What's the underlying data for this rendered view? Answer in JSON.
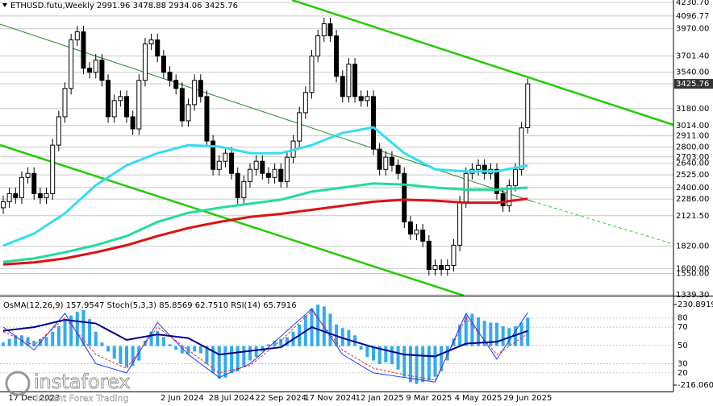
{
  "chart_data": [
    {
      "type": "candlestick",
      "title": "ETHUSD.futu,Weekly  2991.96 3478.88 2934.06 3425.76",
      "categories": [
        null,
        null,
        null,
        null,
        null,
        "17 Dec 2023",
        null,
        null,
        null,
        null,
        null,
        null,
        null,
        null,
        null,
        null,
        null,
        null,
        null,
        null,
        null,
        null,
        null,
        null,
        null,
        null,
        null,
        null,
        null,
        "2 Jun 2024",
        null,
        null,
        null,
        null,
        null,
        null,
        null,
        "28 Jul 2024",
        null,
        null,
        null,
        null,
        null,
        null,
        null,
        "22 Sep 2024",
        null,
        null,
        null,
        null,
        null,
        null,
        null,
        "17 Nov 2024",
        null,
        null,
        null,
        null,
        null,
        null,
        null,
        "12 Jan 2025",
        null,
        null,
        null,
        null,
        null,
        null,
        null,
        "9 Mar 2025",
        null,
        null,
        null,
        null,
        null,
        null,
        null,
        "4 May 2025",
        null,
        null,
        null,
        null,
        null,
        null,
        null,
        "29 Jun 2025"
      ],
      "open": [
        2200,
        2260,
        2340,
        2300,
        2500,
        2540,
        2340,
        2300,
        2340,
        2820,
        3100,
        3380,
        3860,
        3940,
        3580,
        3540,
        3660,
        3460,
        3100,
        3260,
        3300,
        3100,
        2980,
        3460,
        3820,
        3860,
        3700,
        3540,
        3460,
        3380,
        3060,
        3220,
        3460,
        3300,
        2860,
        2580,
        2660,
        2740,
        2540,
        2300,
        2460,
        2580,
        2660,
        2540,
        2500,
        2580,
        2460,
        2700,
        2860,
        3140,
        3340,
        3700,
        3900,
        4020,
        3900,
        3500,
        3300,
        3620,
        3300,
        3260,
        3300,
        2780,
        2580,
        2700,
        2620,
        2540,
        2060,
        1940,
        1980,
        1870,
        1590,
        1630,
        1590,
        1630,
        1830,
        2260,
        2540,
        2580,
        2620,
        2540,
        2580,
        2340,
        2220,
        2420,
        2580,
        2991.96
      ],
      "high": [
        2320,
        2400,
        2400,
        2560,
        2600,
        2600,
        2400,
        2400,
        2880,
        3160,
        3440,
        3920,
        4000,
        4000,
        3640,
        3720,
        3720,
        3520,
        3320,
        3360,
        3360,
        3160,
        3520,
        3880,
        3920,
        3920,
        3760,
        3600,
        3520,
        3440,
        3280,
        3520,
        3520,
        3360,
        2920,
        2720,
        2800,
        2800,
        2600,
        2520,
        2640,
        2720,
        2720,
        2600,
        2640,
        2640,
        2760,
        2920,
        3200,
        3400,
        3760,
        3960,
        4080,
        4080,
        3960,
        3560,
        3680,
        3680,
        3360,
        3360,
        3360,
        2840,
        2760,
        2760,
        2680,
        2600,
        2120,
        2040,
        2040,
        1930,
        1690,
        1690,
        1690,
        1890,
        2320,
        2600,
        2640,
        2680,
        2680,
        2640,
        2640,
        2400,
        2480,
        2640,
        3050,
        3478.88
      ],
      "low": [
        2140,
        2200,
        2240,
        2240,
        2440,
        2280,
        2240,
        2240,
        2280,
        2760,
        3040,
        3320,
        3800,
        3520,
        3480,
        3480,
        3400,
        3040,
        3040,
        3200,
        3040,
        2920,
        2920,
        3400,
        3760,
        3640,
        3480,
        3400,
        3320,
        3000,
        3000,
        3160,
        3240,
        2800,
        2520,
        2520,
        2600,
        2480,
        2240,
        2240,
        2400,
        2520,
        2480,
        2440,
        2440,
        2400,
        2400,
        2640,
        2800,
        3080,
        3280,
        3640,
        3840,
        3840,
        3440,
        3240,
        3240,
        3240,
        3200,
        3200,
        2720,
        2520,
        2520,
        2560,
        2480,
        2000,
        1880,
        1880,
        1810,
        1530,
        1530,
        1530,
        1530,
        1570,
        1770,
        2200,
        2480,
        2520,
        2480,
        2480,
        2280,
        2160,
        2160,
        2360,
        2520,
        2934.06
      ],
      "close": [
        2260,
        2340,
        2300,
        2500,
        2540,
        2340,
        2300,
        2340,
        2820,
        3100,
        3380,
        3860,
        3940,
        3580,
        3540,
        3660,
        3460,
        3100,
        3260,
        3300,
        3100,
        2980,
        3460,
        3820,
        3860,
        3700,
        3540,
        3460,
        3380,
        3060,
        3220,
        3460,
        3300,
        2860,
        2580,
        2660,
        2740,
        2540,
        2300,
        2460,
        2580,
        2660,
        2540,
        2500,
        2580,
        2460,
        2700,
        2860,
        3140,
        3340,
        3700,
        3900,
        4020,
        3900,
        3500,
        3300,
        3620,
        3300,
        3260,
        3300,
        2780,
        2580,
        2700,
        2620,
        2540,
        2060,
        1940,
        1980,
        1870,
        1590,
        1630,
        1590,
        1630,
        1830,
        2260,
        2540,
        2580,
        2620,
        2540,
        2580,
        2340,
        2220,
        2420,
        2580,
        2990,
        3425.76
      ],
      "up_color": "#ffffff",
      "down_color": "#000000",
      "overlays": [
        {
          "color": "#33ddf0",
          "x": [
            0,
            5,
            10,
            15,
            20,
            25,
            30,
            35,
            40,
            45,
            50,
            55,
            60,
            65,
            70,
            75,
            80,
            85
          ],
          "values": [
            1825,
            1945,
            2145,
            2423,
            2620,
            2740,
            2820,
            2805,
            2740,
            2740,
            2820,
            2940,
            2996,
            2740,
            2580,
            2560,
            2560,
            2620
          ]
        },
        {
          "color": "#22dd99",
          "x": [
            0,
            5,
            10,
            15,
            20,
            25,
            30,
            35,
            40,
            45,
            50,
            55,
            60,
            65,
            70,
            75,
            80,
            85
          ],
          "values": [
            1665,
            1700,
            1760,
            1830,
            1920,
            2060,
            2150,
            2200,
            2240,
            2280,
            2360,
            2400,
            2440,
            2430,
            2400,
            2380,
            2380,
            2400
          ]
        },
        {
          "color": "#dd1111",
          "x": [
            0,
            5,
            10,
            15,
            20,
            25,
            30,
            35,
            40,
            45,
            50,
            55,
            60,
            65,
            70,
            75,
            80,
            85
          ],
          "values": [
            1640,
            1660,
            1700,
            1760,
            1830,
            1920,
            2000,
            2060,
            2110,
            2140,
            2180,
            2220,
            2260,
            2280,
            2270,
            2250,
            2250,
            2290
          ]
        }
      ],
      "ylim": [
        1339.3,
        4230.7
      ],
      "yticks": [
        {
          "value": 4230.7,
          "label": "4230.70"
        },
        4096.77,
        {
          "value": 3970,
          "label": "3970.00"
        },
        {
          "value": 3701.4,
          "label": "3701.40"
        },
        {
          "value": 3540,
          "label": "3540.00"
        },
        3425.76,
        {
          "value": 3180,
          "label": "3180.00"
        },
        {
          "value": 3014,
          "label": "3014.00"
        },
        {
          "value": 2911,
          "label": "2911.00"
        },
        {
          "value": 2800,
          "label": "2800.00"
        },
        {
          "value": 2703,
          "label": "2703.00"
        },
        {
          "value": 2640,
          "label": "2640.00"
        },
        {
          "value": 2525,
          "label": "2525.00"
        },
        {
          "value": 2400,
          "label": "2400.00"
        },
        {
          "value": 2286,
          "label": "2286.00"
        },
        {
          "value": 2121.5,
          "label": "2121.50"
        },
        {
          "value": 1820,
          "label": "1820.00"
        },
        {
          "value": 1600,
          "label": "1600.00"
        },
        {
          "value": 1550,
          "label": "1550.00"
        },
        {
          "value": 1339.3,
          "label": "1339.30"
        }
      ],
      "grid": true
    },
    {
      "type": "oscillator",
      "title": "OsMA(12,26,9) 157.9547 Stoch(5,3,3) 85.8569 62.7510 RSI(14) 65.7916",
      "xlim": [
        0,
        85
      ],
      "histogram": {
        "color": "#33aaee",
        "values": [
          20,
          40,
          60,
          60,
          50,
          30,
          40,
          50,
          80,
          110,
          140,
          170,
          190,
          200,
          150,
          80,
          20,
          -30,
          -70,
          -100,
          -115,
          -110,
          -80,
          30,
          80,
          85,
          50,
          10,
          -20,
          -40,
          -45,
          -30,
          -40,
          -100,
          -150,
          -180,
          -175,
          -150,
          -140,
          -110,
          -80,
          -60,
          -30,
          10,
          30,
          40,
          50,
          80,
          120,
          170,
          210,
          230,
          220,
          180,
          120,
          100,
          90,
          60,
          -20,
          -60,
          -80,
          -100,
          -90,
          -100,
          -130,
          -170,
          -200,
          -210,
          -200,
          -190,
          -170,
          -140,
          -80,
          40,
          120,
          170,
          180,
          160,
          140,
          130,
          130,
          110,
          100,
          110,
          130,
          157.9547
        ]
      },
      "ylim": [
        -216.0603,
        230.8919
      ],
      "yticks": [
        230.8919,
        -216.0603
      ],
      "y2lim": [
        0,
        100
      ],
      "y2ticks": [
        80,
        70,
        50,
        30,
        20
      ],
      "series": [
        {
          "color": "#1a3cff",
          "dash": false,
          "width": 1,
          "axis": "y2",
          "x": [
            0,
            5,
            10,
            15,
            20,
            25,
            30,
            35,
            40,
            45,
            50,
            55,
            60,
            65,
            70,
            75,
            80,
            85
          ],
          "values": [
            70,
            45,
            85,
            30,
            20,
            75,
            40,
            15,
            30,
            60,
            90,
            40,
            20,
            15,
            10,
            85,
            35,
            85.8569
          ]
        },
        {
          "color": "#ff2020",
          "dash": true,
          "width": 1,
          "axis": "y2",
          "x": [
            0,
            5,
            10,
            15,
            20,
            25,
            30,
            35,
            40,
            45,
            50,
            55,
            60,
            65,
            70,
            75,
            80,
            85
          ],
          "values": [
            65,
            50,
            80,
            40,
            25,
            70,
            45,
            20,
            28,
            55,
            88,
            45,
            25,
            18,
            12,
            80,
            40,
            62.751
          ]
        },
        {
          "color": "#00008b",
          "dash": false,
          "width": 2,
          "axis": "y2",
          "x": [
            0,
            5,
            10,
            15,
            20,
            25,
            30,
            35,
            40,
            45,
            50,
            55,
            60,
            65,
            70,
            75,
            80,
            85
          ],
          "values": [
            66,
            70,
            78,
            74,
            56,
            62,
            58,
            40,
            44,
            48,
            70,
            58,
            48,
            40,
            38,
            52,
            54,
            65.7916
          ]
        }
      ]
    }
  ],
  "logo": {
    "name": "instaforex",
    "tagline": "Instant Forex Trading"
  }
}
